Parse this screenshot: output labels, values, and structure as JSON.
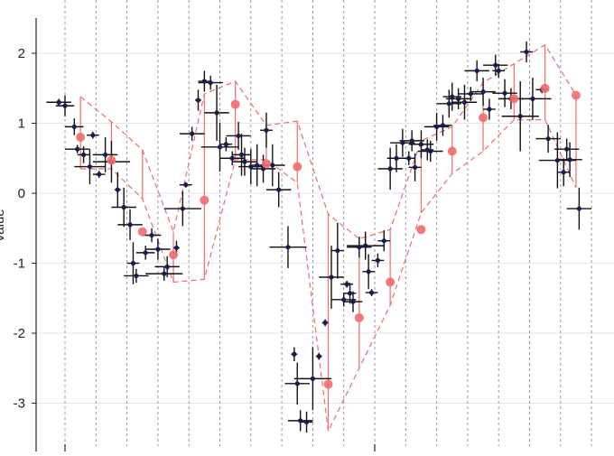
{
  "chart_data": {
    "type": "scatter",
    "title": "",
    "xlabel": "",
    "ylabel": "",
    "ylim": [
      -3.6,
      2.5
    ],
    "xlim": [
      -0.08,
      1.02
    ],
    "yticks": [
      -3,
      -2,
      -1,
      0,
      1,
      2
    ],
    "ytick_labels": [
      "-3",
      "-2",
      "-1",
      "0",
      "1",
      "2"
    ],
    "xticks": [
      0,
      0.5
    ],
    "ylabel_visible_fragment": "Value",
    "grid": "horizontal light gridlines; vertical dashed bin separators",
    "colors": {
      "points": "#1a1a4e",
      "errorbars": "#111111",
      "bin_means": "#f26b6b",
      "band": "#f26b6b",
      "grid": "#e6e6e6",
      "bin_lines": "#999999"
    },
    "bin_edges": [
      0.0,
      0.05,
      0.1,
      0.15,
      0.2,
      0.25,
      0.3,
      0.35,
      0.4,
      0.45,
      0.5,
      0.55,
      0.6,
      0.65,
      0.7,
      0.75,
      0.8,
      0.85,
      0.9,
      0.95,
      1.0
    ],
    "series": [
      {
        "type": "scatter-with-errorbars",
        "points": [
          {
            "x": -0.01,
            "y": 1.3,
            "xerr": 0.02,
            "yerr": 0.05
          },
          {
            "x": 0.0,
            "y": 1.25,
            "xerr": 0.015,
            "yerr": 0.15
          },
          {
            "x": 0.015,
            "y": 0.95,
            "xerr": 0.015,
            "yerr": 0.12
          },
          {
            "x": 0.02,
            "y": 0.63,
            "xerr": 0.02,
            "yerr": 0.06
          },
          {
            "x": 0.03,
            "y": 0.55,
            "xerr": 0.01,
            "yerr": 0.12
          },
          {
            "x": 0.04,
            "y": 0.38,
            "xerr": 0.025,
            "yerr": 0.25
          },
          {
            "x": 0.045,
            "y": 0.83,
            "xerr": 0.01,
            "yerr": 0.05
          },
          {
            "x": 0.055,
            "y": 0.27,
            "xerr": 0.01,
            "yerr": 0.05
          },
          {
            "x": 0.065,
            "y": 0.55,
            "xerr": 0.02,
            "yerr": 0.25
          },
          {
            "x": 0.075,
            "y": 0.45,
            "xerr": 0.03,
            "yerr": 0.3
          },
          {
            "x": 0.085,
            "y": 0.05,
            "xerr": 0.005,
            "yerr": 0.25
          },
          {
            "x": 0.095,
            "y": -0.2,
            "xerr": 0.02,
            "yerr": 0.28
          },
          {
            "x": 0.105,
            "y": -0.45,
            "xerr": 0.02,
            "yerr": 0.22
          },
          {
            "x": 0.11,
            "y": -1.0,
            "xerr": 0.01,
            "yerr": 0.3
          },
          {
            "x": 0.115,
            "y": -1.18,
            "xerr": 0.02,
            "yerr": 0.1
          },
          {
            "x": 0.13,
            "y": -0.85,
            "xerr": 0.015,
            "yerr": 0.1
          },
          {
            "x": 0.14,
            "y": -0.6,
            "xerr": 0.015,
            "yerr": 0.1
          },
          {
            "x": 0.15,
            "y": -0.8,
            "xerr": 0.02,
            "yerr": 0.15
          },
          {
            "x": 0.16,
            "y": -1.15,
            "xerr": 0.03,
            "yerr": 0.1
          },
          {
            "x": 0.165,
            "y": -1.05,
            "xerr": 0.02,
            "yerr": 0.15
          },
          {
            "x": 0.18,
            "y": -0.78,
            "xerr": 0.005,
            "yerr": 0.1
          },
          {
            "x": 0.19,
            "y": -0.22,
            "xerr": 0.03,
            "yerr": 0.25
          },
          {
            "x": 0.195,
            "y": 0.12,
            "xerr": 0.01,
            "yerr": 0.04
          },
          {
            "x": 0.205,
            "y": 0.85,
            "xerr": 0.02,
            "yerr": 0.1
          },
          {
            "x": 0.215,
            "y": 1.33,
            "xerr": 0.005,
            "yerr": 0.15
          },
          {
            "x": 0.225,
            "y": 1.6,
            "xerr": 0.01,
            "yerr": 0.15
          },
          {
            "x": 0.235,
            "y": 1.58,
            "xerr": 0.02,
            "yerr": 0.1
          },
          {
            "x": 0.245,
            "y": 1.15,
            "xerr": 0.02,
            "yerr": 0.4
          },
          {
            "x": 0.25,
            "y": 0.66,
            "xerr": 0.03,
            "yerr": 0.35
          },
          {
            "x": 0.26,
            "y": 0.7,
            "xerr": 0.01,
            "yerr": 0.1
          },
          {
            "x": 0.27,
            "y": 0.5,
            "xerr": 0.02,
            "yerr": 0.1
          },
          {
            "x": 0.28,
            "y": 0.82,
            "xerr": 0.02,
            "yerr": 0.2
          },
          {
            "x": 0.285,
            "y": 0.55,
            "xerr": 0.015,
            "yerr": 0.3
          },
          {
            "x": 0.29,
            "y": 0.45,
            "xerr": 0.02,
            "yerr": 0.2
          },
          {
            "x": 0.3,
            "y": 0.38,
            "xerr": 0.02,
            "yerr": 0.25
          },
          {
            "x": 0.31,
            "y": 0.4,
            "xerr": 0.01,
            "yerr": 0.3
          },
          {
            "x": 0.32,
            "y": 0.35,
            "xerr": 0.02,
            "yerr": 0.2
          },
          {
            "x": 0.325,
            "y": 0.9,
            "xerr": 0.01,
            "yerr": 0.25
          },
          {
            "x": 0.335,
            "y": 0.4,
            "xerr": 0.02,
            "yerr": 0.3
          },
          {
            "x": 0.345,
            "y": 0.05,
            "xerr": 0.02,
            "yerr": 0.25
          },
          {
            "x": 0.36,
            "y": -0.77,
            "xerr": 0.03,
            "yerr": 0.3
          },
          {
            "x": 0.37,
            "y": -2.3,
            "xerr": 0.005,
            "yerr": 0.1
          },
          {
            "x": 0.375,
            "y": -2.72,
            "xerr": 0.02,
            "yerr": 0.3
          },
          {
            "x": 0.38,
            "y": -3.25,
            "xerr": 0.02,
            "yerr": 0.15
          },
          {
            "x": 0.39,
            "y": -3.27,
            "xerr": 0.01,
            "yerr": 0.15
          },
          {
            "x": 0.4,
            "y": -2.65,
            "xerr": 0.03,
            "yerr": 0.45
          },
          {
            "x": 0.41,
            "y": -2.33,
            "xerr": 0.005,
            "yerr": 0.05
          },
          {
            "x": 0.42,
            "y": -1.85,
            "xerr": 0.005,
            "yerr": 0.05
          },
          {
            "x": 0.43,
            "y": -1.2,
            "xerr": 0.02,
            "yerr": 0.45
          },
          {
            "x": 0.44,
            "y": -0.82,
            "xerr": 0.01,
            "yerr": 0.4
          },
          {
            "x": 0.45,
            "y": -1.52,
            "xerr": 0.02,
            "yerr": 0.1
          },
          {
            "x": 0.455,
            "y": -1.3,
            "xerr": 0.01,
            "yerr": 0.05
          },
          {
            "x": 0.46,
            "y": -1.43,
            "xerr": 0.01,
            "yerr": 0.15
          },
          {
            "x": 0.465,
            "y": -1.55,
            "xerr": 0.015,
            "yerr": 0.15
          },
          {
            "x": 0.475,
            "y": -0.77,
            "xerr": 0.02,
            "yerr": 0.15
          },
          {
            "x": 0.485,
            "y": -0.75,
            "xerr": 0.03,
            "yerr": 0.2
          },
          {
            "x": 0.49,
            "y": -1.12,
            "xerr": 0.01,
            "yerr": 0.25
          },
          {
            "x": 0.495,
            "y": -1.42,
            "xerr": 0.01,
            "yerr": 0.05
          },
          {
            "x": 0.505,
            "y": -0.96,
            "xerr": 0.01,
            "yerr": 0.1
          },
          {
            "x": 0.515,
            "y": -0.68,
            "xerr": 0.01,
            "yerr": 0.15
          },
          {
            "x": 0.525,
            "y": 0.35,
            "xerr": 0.02,
            "yerr": 0.3
          },
          {
            "x": 0.535,
            "y": 0.5,
            "xerr": 0.015,
            "yerr": 0.2
          },
          {
            "x": 0.545,
            "y": 0.72,
            "xerr": 0.02,
            "yerr": 0.2
          },
          {
            "x": 0.555,
            "y": 0.5,
            "xerr": 0.01,
            "yerr": 0.1
          },
          {
            "x": 0.56,
            "y": 0.75,
            "xerr": 0.02,
            "yerr": 0.15
          },
          {
            "x": 0.565,
            "y": 0.37,
            "xerr": 0.01,
            "yerr": 0.2
          },
          {
            "x": 0.575,
            "y": 0.7,
            "xerr": 0.02,
            "yerr": 0.2
          },
          {
            "x": 0.585,
            "y": 0.62,
            "xerr": 0.01,
            "yerr": 0.15
          },
          {
            "x": 0.59,
            "y": 0.6,
            "xerr": 0.02,
            "yerr": 0.15
          },
          {
            "x": 0.6,
            "y": 0.95,
            "xerr": 0.02,
            "yerr": 0.2
          },
          {
            "x": 0.61,
            "y": 0.97,
            "xerr": 0.015,
            "yerr": 0.15
          },
          {
            "x": 0.62,
            "y": 1.28,
            "xerr": 0.02,
            "yerr": 0.2
          },
          {
            "x": 0.625,
            "y": 1.38,
            "xerr": 0.015,
            "yerr": 0.2
          },
          {
            "x": 0.635,
            "y": 1.35,
            "xerr": 0.02,
            "yerr": 0.15
          },
          {
            "x": 0.645,
            "y": 1.3,
            "xerr": 0.02,
            "yerr": 0.25
          },
          {
            "x": 0.655,
            "y": 1.42,
            "xerr": 0.02,
            "yerr": 0.1
          },
          {
            "x": 0.665,
            "y": 1.75,
            "xerr": 0.02,
            "yerr": 0.15
          },
          {
            "x": 0.675,
            "y": 1.45,
            "xerr": 0.02,
            "yerr": 0.2
          },
          {
            "x": 0.685,
            "y": 1.2,
            "xerr": 0.01,
            "yerr": 0.15
          },
          {
            "x": 0.695,
            "y": 1.83,
            "xerr": 0.02,
            "yerr": 0.15
          },
          {
            "x": 0.7,
            "y": 1.75,
            "xerr": 0.01,
            "yerr": 0.1
          },
          {
            "x": 0.71,
            "y": 1.43,
            "xerr": 0.02,
            "yerr": 0.2
          },
          {
            "x": 0.72,
            "y": 1.35,
            "xerr": 0.02,
            "yerr": 0.15
          },
          {
            "x": 0.735,
            "y": 1.1,
            "xerr": 0.03,
            "yerr": 0.5
          },
          {
            "x": 0.745,
            "y": 2.02,
            "xerr": 0.01,
            "yerr": 0.15
          },
          {
            "x": 0.755,
            "y": 1.35,
            "xerr": 0.03,
            "yerr": 0.3
          },
          {
            "x": 0.77,
            "y": 1.48,
            "xerr": 0.01,
            "yerr": 0.05
          },
          {
            "x": 0.78,
            "y": 0.78,
            "xerr": 0.02,
            "yerr": 0.2
          },
          {
            "x": 0.795,
            "y": 0.47,
            "xerr": 0.03,
            "yerr": 0.4
          },
          {
            "x": 0.805,
            "y": 0.3,
            "xerr": 0.01,
            "yerr": 0.2
          },
          {
            "x": 0.81,
            "y": 0.63,
            "xerr": 0.02,
            "yerr": 0.15
          },
          {
            "x": 0.815,
            "y": 0.48,
            "xerr": 0.02,
            "yerr": 0.25
          },
          {
            "x": 0.83,
            "y": -0.22,
            "xerr": 0.02,
            "yerr": 0.3
          }
        ]
      },
      {
        "type": "bin-means",
        "x": [
          0.025,
          0.075,
          0.125,
          0.175,
          0.225,
          0.275,
          0.325,
          0.375,
          0.425,
          0.475,
          0.525,
          0.575,
          0.625,
          0.675,
          0.725,
          0.775,
          0.825
        ],
        "y": [
          0.8,
          0.47,
          -0.55,
          -0.88,
          -0.1,
          1.27,
          0.42,
          0.38,
          -2.73,
          -1.78,
          -1.27,
          -0.52,
          0.6,
          1.08,
          1.35,
          1.5,
          1.4
        ],
        "upper": [
          1.38,
          1.02,
          0.62,
          -0.55,
          1.42,
          1.6,
          0.97,
          1.03,
          -0.3,
          -0.65,
          -0.52,
          0.75,
          0.95,
          1.58,
          1.85,
          2.12,
          1.4
        ],
        "lower": [
          0.35,
          0.35,
          -0.08,
          -1.27,
          -1.23,
          0.48,
          0.48,
          0.15,
          -3.4,
          -2.5,
          -1.6,
          -0.28,
          0.28,
          0.6,
          1.05,
          1.05,
          0.08
        ]
      }
    ]
  }
}
